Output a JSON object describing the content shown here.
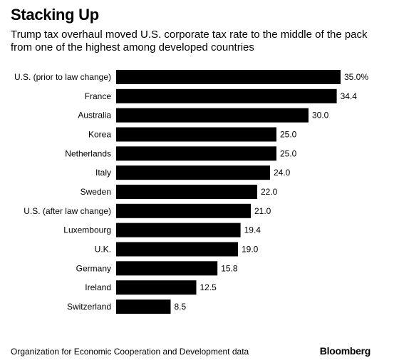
{
  "header": {
    "title": "Stacking Up",
    "subtitle": "Trump tax overhaul moved U.S. corporate tax rate to the middle of the pack from one of the highest among developed countries"
  },
  "footer": {
    "source": "Organization for Economic Cooperation and Development data",
    "brand": "Bloomberg"
  },
  "chart_data": {
    "type": "bar",
    "orientation": "horizontal",
    "title": "Stacking Up",
    "subtitle": "Trump tax overhaul moved U.S. corporate tax rate to the middle of the pack from one of the highest among developed countries",
    "categories": [
      "U.S. (prior to law change)",
      "France",
      "Australia",
      "Korea",
      "Netherlands",
      "Italy",
      "Sweden",
      "U.S. (after law change)",
      "Luxembourg",
      "U.K.",
      "Germany",
      "Ireland",
      "Switzerland"
    ],
    "values": [
      35.0,
      34.4,
      30.0,
      25.0,
      25.0,
      24.0,
      22.0,
      21.0,
      19.4,
      19.0,
      15.8,
      12.5,
      8.5
    ],
    "value_labels": [
      "35.0%",
      "34.4",
      "30.0",
      "25.0",
      "25.0",
      "24.0",
      "22.0",
      "21.0",
      "19.4",
      "19.0",
      "15.8",
      "12.5",
      "8.5"
    ],
    "xlim": [
      0,
      35
    ],
    "grid": false,
    "bar_color": "#000000"
  }
}
